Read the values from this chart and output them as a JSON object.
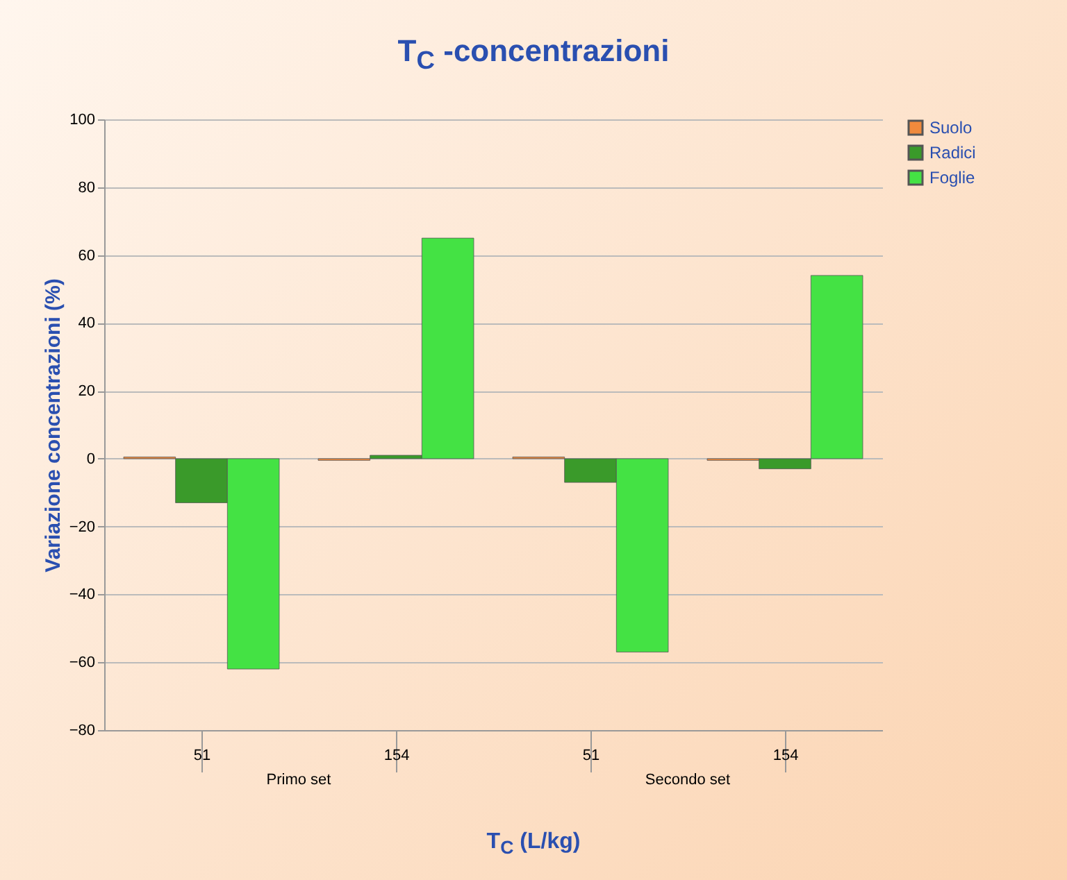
{
  "chart_data": {
    "type": "bar",
    "title": "T$_{C}$ -concentrazioni",
    "xlabel": "T$_{C}$  (L/kg)",
    "ylabel": "Variazione concentrazioni (%)",
    "categories": [
      "51",
      "154",
      "51",
      "154"
    ],
    "annotations": [
      "Primo set",
      "Secondo set"
    ],
    "series": [
      {
        "name": "Suolo",
        "color": "#f08a3c",
        "values": [
          0.5,
          -0.5,
          0.5,
          -0.5
        ]
      },
      {
        "name": "Radici",
        "color": "#3a9a2a",
        "values": [
          -13,
          1,
          -7,
          -3
        ]
      },
      {
        "name": "Foglie",
        "color": "#44e244",
        "values": [
          -62,
          65,
          -57,
          54
        ]
      }
    ],
    "ylim": [
      -80,
      100
    ],
    "yticks": [
      -80,
      -60,
      -40,
      -20,
      0,
      20,
      40,
      60,
      80,
      100
    ],
    "grid": "y",
    "legend": "right"
  }
}
